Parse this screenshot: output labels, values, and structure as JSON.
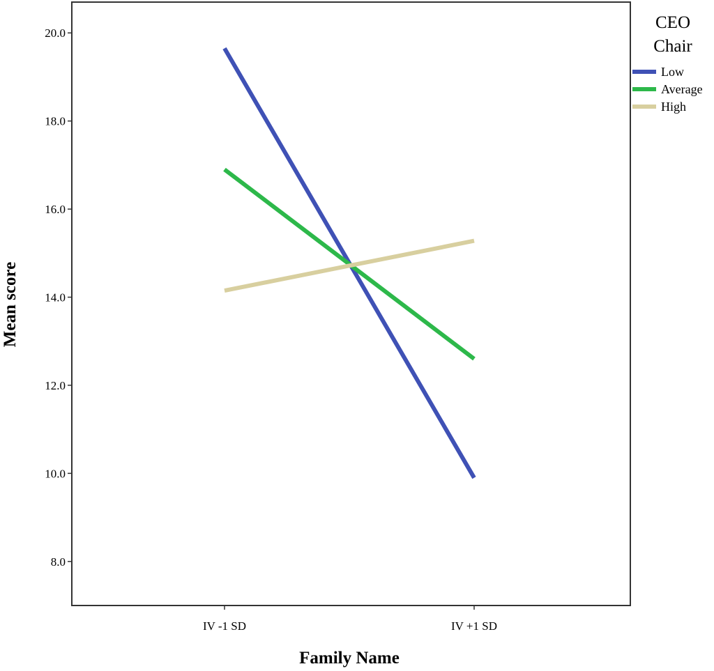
{
  "chart_data": {
    "type": "line",
    "xlabel": "Family Name",
    "ylabel": "Mean score",
    "categories": [
      "IV -1 SD",
      "IV +1 SD"
    ],
    "ylim": [
      7.0,
      20.7
    ],
    "yticks": [
      8.0,
      10.0,
      12.0,
      14.0,
      16.0,
      18.0,
      20.0
    ],
    "ytick_labels": [
      "8.0",
      "10.0",
      "12.0",
      "14.0",
      "16.0",
      "18.0",
      "20.0"
    ],
    "grid": false,
    "legend": {
      "title_lines": [
        "CEO",
        "Chair"
      ],
      "placement": "right"
    },
    "series": [
      {
        "name": "Low",
        "values": [
          19.65,
          9.9
        ],
        "color": "#3f51b5"
      },
      {
        "name": "Average",
        "values": [
          16.9,
          12.6
        ],
        "color": "#2db84a"
      },
      {
        "name": "High",
        "values": [
          14.15,
          15.28
        ],
        "color": "#d8cf9f"
      }
    ]
  }
}
